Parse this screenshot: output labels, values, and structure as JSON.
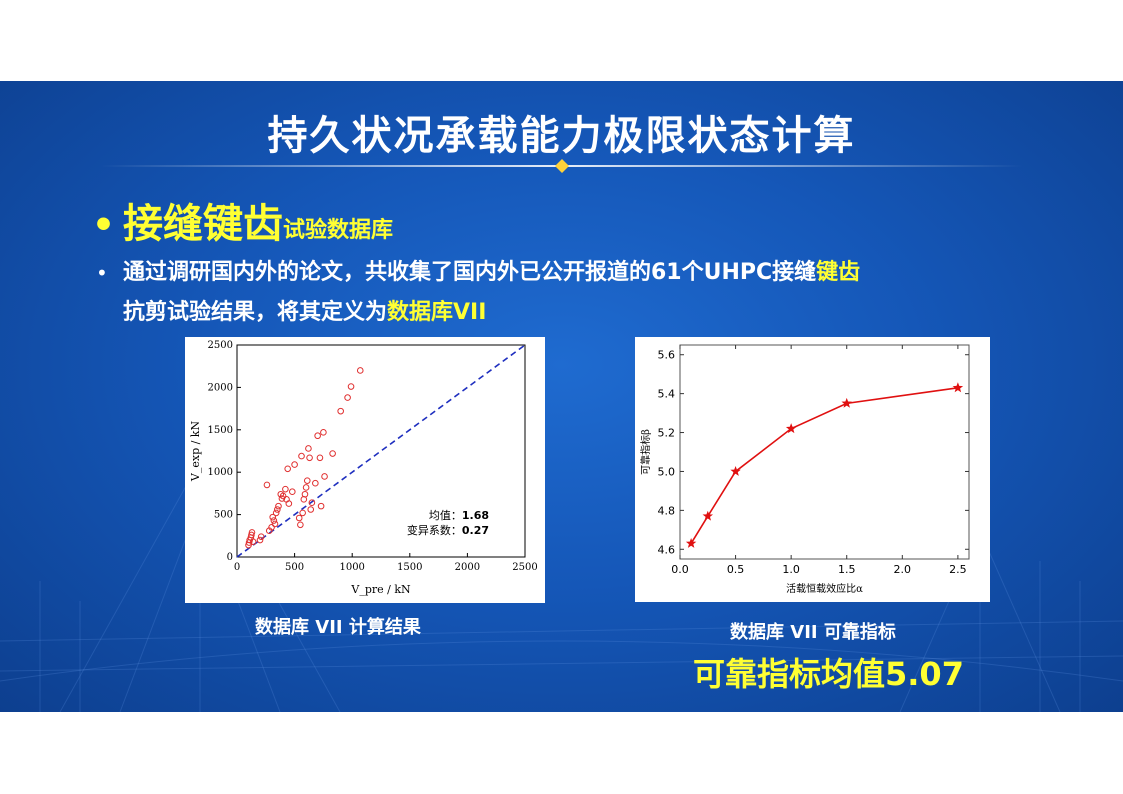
{
  "slide": {
    "title": "持久状况承载能力极限状态计算",
    "bullet1": {
      "dot": "•",
      "big": "接缝键齿",
      "small": "试验数据库"
    },
    "bullet2": {
      "dot": "•",
      "line1_part1": "通过调研国内外的论文，共收集了国内外已公开报道的61个UHPC接缝",
      "line1_hl": "键齿",
      "line2_part1": "抗剪试验结果，将其定义为",
      "line2_hl": "数据库VII"
    },
    "caption_left": "数据库 VII 计算结果",
    "caption_right": "数据库 VII 可靠指标",
    "big_caption": "可靠指标均值5.07"
  },
  "colors": {
    "accent": "#ffff33",
    "background": "#1557b8",
    "scatter": "#e03030",
    "diagonal": "#1f2fbf",
    "line": "#e01010"
  },
  "chart_data": [
    {
      "type": "scatter",
      "xlabel": "V_pre / kN",
      "ylabel": "V_exp / kN",
      "xlim": [
        0,
        2500
      ],
      "ylim": [
        0,
        2500
      ],
      "xticks": [
        "0",
        "500",
        "1000",
        "1500",
        "2000",
        "2500"
      ],
      "yticks": [
        "0",
        "500",
        "1000",
        "1500",
        "2000",
        "2500"
      ],
      "annotation": {
        "mean_label": "均值：",
        "mean_value": "1.68",
        "cv_label": "变异系数：",
        "cv_value": "0.27"
      },
      "diagonal": [
        [
          0,
          0
        ],
        [
          2500,
          2500
        ]
      ],
      "points": [
        [
          100,
          140
        ],
        [
          105,
          170
        ],
        [
          110,
          200
        ],
        [
          120,
          230
        ],
        [
          125,
          260
        ],
        [
          130,
          290
        ],
        [
          140,
          180
        ],
        [
          200,
          200
        ],
        [
          210,
          240
        ],
        [
          260,
          850
        ],
        [
          280,
          310
        ],
        [
          300,
          350
        ],
        [
          310,
          470
        ],
        [
          320,
          430
        ],
        [
          330,
          390
        ],
        [
          340,
          520
        ],
        [
          350,
          560
        ],
        [
          360,
          600
        ],
        [
          380,
          740
        ],
        [
          390,
          690
        ],
        [
          400,
          720
        ],
        [
          420,
          800
        ],
        [
          430,
          680
        ],
        [
          440,
          1040
        ],
        [
          450,
          630
        ],
        [
          480,
          770
        ],
        [
          500,
          1090
        ],
        [
          540,
          460
        ],
        [
          550,
          380
        ],
        [
          560,
          1190
        ],
        [
          570,
          520
        ],
        [
          580,
          680
        ],
        [
          590,
          740
        ],
        [
          600,
          820
        ],
        [
          610,
          900
        ],
        [
          620,
          1280
        ],
        [
          630,
          1170
        ],
        [
          640,
          560
        ],
        [
          650,
          640
        ],
        [
          680,
          870
        ],
        [
          700,
          1430
        ],
        [
          720,
          1170
        ],
        [
          730,
          600
        ],
        [
          750,
          1470
        ],
        [
          760,
          950
        ],
        [
          830,
          1220
        ],
        [
          900,
          1720
        ],
        [
          960,
          1880
        ],
        [
          990,
          2010
        ],
        [
          1070,
          2200
        ]
      ]
    },
    {
      "type": "line",
      "xlabel": "活载恒载效应比α",
      "ylabel": "可靠指标β",
      "xlim": [
        0,
        2.6
      ],
      "ylim": [
        4.55,
        5.65
      ],
      "xticks": [
        "0.0",
        "0.5",
        "1.0",
        "1.5",
        "2.0",
        "2.5"
      ],
      "yticks": [
        "4.6",
        "4.8",
        "5.0",
        "5.2",
        "5.4",
        "5.6"
      ],
      "x": [
        0.1,
        0.25,
        0.5,
        1.0,
        1.5,
        2.5
      ],
      "y": [
        4.63,
        4.77,
        5.0,
        5.22,
        5.35,
        5.43
      ]
    }
  ]
}
